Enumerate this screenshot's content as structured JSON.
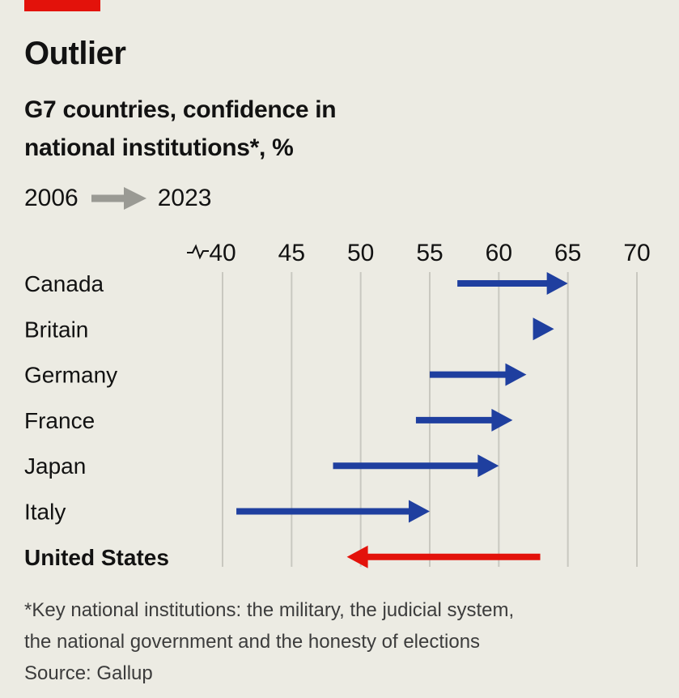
{
  "header": {
    "title": "Outlier",
    "subtitle_line1": "G7 countries, confidence in",
    "subtitle_line2": "national institutions*, %"
  },
  "legend": {
    "from_label": "2006",
    "to_label": "2023"
  },
  "footer": {
    "note_line1": "*Key national institutions: the military, the judicial system,",
    "note_line2": "the national government and the honesty of elections",
    "source": "Source: Gallup"
  },
  "colors": {
    "background": "#ecebe3",
    "accent_tag": "#e3120b",
    "increase": "#1f3f9f",
    "decrease": "#e3120b",
    "legend_arrow": "#9a9a94",
    "gridline": "#c9c8c0"
  },
  "chart_data": {
    "type": "arrow",
    "title": "Outlier",
    "subtitle": "G7 countries, confidence in national institutions*, %",
    "x_start_label": "2006",
    "x_end_label": "2023",
    "xlim": [
      40,
      70
    ],
    "ticks": [
      40,
      45,
      50,
      55,
      60,
      65,
      70
    ],
    "axis_break": true,
    "grid": true,
    "categories": [
      "Canada",
      "Britain",
      "Germany",
      "France",
      "Japan",
      "Italy",
      "United States"
    ],
    "series": [
      {
        "name": "2006",
        "values": [
          57,
          62.5,
          55,
          54,
          48,
          41,
          63
        ]
      },
      {
        "name": "2023",
        "values": [
          65,
          64,
          62,
          61,
          60,
          55,
          49
        ]
      }
    ],
    "highlight": "United States"
  }
}
